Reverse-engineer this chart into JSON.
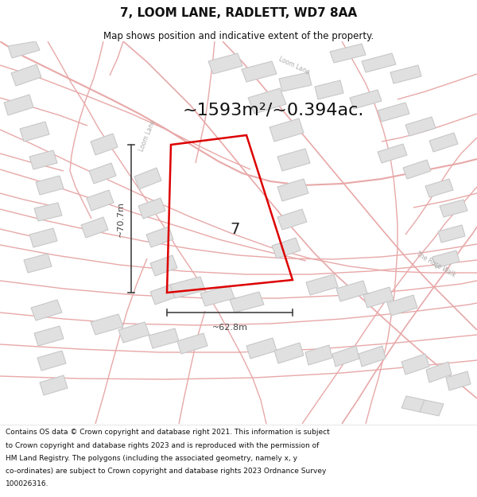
{
  "title": "7, LOOM LANE, RADLETT, WD7 8AA",
  "subtitle": "Map shows position and indicative extent of the property.",
  "area_text": "~1593m²/~0.394ac.",
  "dim_h": "~70.7m",
  "dim_w": "~62.8m",
  "property_label": "7",
  "footer": "Contains OS data © Crown copyright and database right 2021. This information is subject to Crown copyright and database rights 2023 and is reproduced with the permission of HM Land Registry. The polygons (including the associated geometry, namely x, y co-ordinates) are subject to Crown copyright and database rights 2023 Ordnance Survey 100026316.",
  "map_bg": "#ffffff",
  "road_color": "#e8a8a8",
  "building_fill": "#e0e0e0",
  "building_edge": "#c8c8c8",
  "property_color": "#dd0000",
  "title_color": "#111111",
  "footer_color": "#111111",
  "annotation_color": "#444444",
  "street_label_color": "#aaaaaa"
}
